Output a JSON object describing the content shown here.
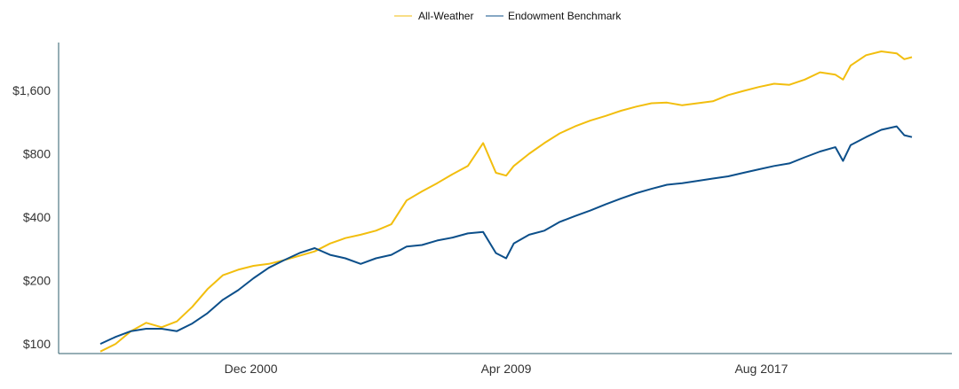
{
  "chart_data": {
    "type": "line",
    "title": "",
    "xlabel": "",
    "ylabel": "",
    "y_scale": "log",
    "ylim": [
      90,
      2700
    ],
    "y_ticks": [
      {
        "value": 100,
        "label": "$100"
      },
      {
        "value": 200,
        "label": "$200"
      },
      {
        "value": 400,
        "label": "$400"
      },
      {
        "value": 800,
        "label": "$800"
      },
      {
        "value": 1600,
        "label": "$1,600"
      }
    ],
    "x_range": [
      "1996-01",
      "2022-07"
    ],
    "x_ticks": [
      {
        "value": "2000-12",
        "label": "Dec 2000"
      },
      {
        "value": "2009-04",
        "label": "Apr 2009"
      },
      {
        "value": "2017-08",
        "label": "Aug 2017"
      }
    ],
    "legend": {
      "position": "top-center"
    },
    "grid": false,
    "series": [
      {
        "name": "All-Weather",
        "color": "#F2BE0E",
        "points": [
          [
            "1996-01",
            92
          ],
          [
            "1996-07",
            100
          ],
          [
            "1997-01",
            115
          ],
          [
            "1997-07",
            126
          ],
          [
            "1998-01",
            120
          ],
          [
            "1998-07",
            128
          ],
          [
            "1999-01",
            150
          ],
          [
            "1999-07",
            182
          ],
          [
            "2000-01",
            212
          ],
          [
            "2000-07",
            225
          ],
          [
            "2001-01",
            235
          ],
          [
            "2001-07",
            240
          ],
          [
            "2002-01",
            250
          ],
          [
            "2002-07",
            262
          ],
          [
            "2003-01",
            275
          ],
          [
            "2003-07",
            300
          ],
          [
            "2004-01",
            318
          ],
          [
            "2004-07",
            330
          ],
          [
            "2005-01",
            345
          ],
          [
            "2005-07",
            370
          ],
          [
            "2006-01",
            480
          ],
          [
            "2006-07",
            530
          ],
          [
            "2007-01",
            580
          ],
          [
            "2007-07",
            640
          ],
          [
            "2008-01",
            700
          ],
          [
            "2008-07",
            900
          ],
          [
            "2008-12",
            650
          ],
          [
            "2009-04",
            630
          ],
          [
            "2009-07",
            700
          ],
          [
            "2010-01",
            800
          ],
          [
            "2010-07",
            900
          ],
          [
            "2011-01",
            1000
          ],
          [
            "2011-07",
            1080
          ],
          [
            "2012-01",
            1150
          ],
          [
            "2012-07",
            1210
          ],
          [
            "2013-01",
            1280
          ],
          [
            "2013-07",
            1340
          ],
          [
            "2014-01",
            1390
          ],
          [
            "2014-07",
            1400
          ],
          [
            "2015-01",
            1360
          ],
          [
            "2015-07",
            1390
          ],
          [
            "2016-01",
            1420
          ],
          [
            "2016-07",
            1520
          ],
          [
            "2017-01",
            1590
          ],
          [
            "2017-07",
            1660
          ],
          [
            "2018-01",
            1720
          ],
          [
            "2018-07",
            1700
          ],
          [
            "2019-01",
            1800
          ],
          [
            "2019-07",
            1950
          ],
          [
            "2020-01",
            1900
          ],
          [
            "2020-04",
            1800
          ],
          [
            "2020-07",
            2100
          ],
          [
            "2021-01",
            2350
          ],
          [
            "2021-07",
            2450
          ],
          [
            "2022-01",
            2400
          ],
          [
            "2022-04",
            2250
          ],
          [
            "2022-07",
            2300
          ]
        ]
      },
      {
        "name": "Endowment Benchmark",
        "color": "#0C4F8A",
        "points": [
          [
            "1996-01",
            100
          ],
          [
            "1996-07",
            108
          ],
          [
            "1997-01",
            115
          ],
          [
            "1997-07",
            118
          ],
          [
            "1998-01",
            118
          ],
          [
            "1998-07",
            115
          ],
          [
            "1999-01",
            125
          ],
          [
            "1999-07",
            140
          ],
          [
            "2000-01",
            162
          ],
          [
            "2000-07",
            180
          ],
          [
            "2001-01",
            205
          ],
          [
            "2001-07",
            230
          ],
          [
            "2002-01",
            250
          ],
          [
            "2002-07",
            270
          ],
          [
            "2003-01",
            285
          ],
          [
            "2003-07",
            265
          ],
          [
            "2004-01",
            255
          ],
          [
            "2004-07",
            240
          ],
          [
            "2005-01",
            255
          ],
          [
            "2005-07",
            265
          ],
          [
            "2006-01",
            290
          ],
          [
            "2006-07",
            295
          ],
          [
            "2007-01",
            310
          ],
          [
            "2007-07",
            320
          ],
          [
            "2008-01",
            335
          ],
          [
            "2008-07",
            340
          ],
          [
            "2008-12",
            270
          ],
          [
            "2009-04",
            255
          ],
          [
            "2009-07",
            300
          ],
          [
            "2010-01",
            330
          ],
          [
            "2010-07",
            345
          ],
          [
            "2011-01",
            380
          ],
          [
            "2011-07",
            405
          ],
          [
            "2012-01",
            430
          ],
          [
            "2012-07",
            460
          ],
          [
            "2013-01",
            490
          ],
          [
            "2013-07",
            520
          ],
          [
            "2014-01",
            545
          ],
          [
            "2014-07",
            570
          ],
          [
            "2015-01",
            580
          ],
          [
            "2015-07",
            595
          ],
          [
            "2016-01",
            610
          ],
          [
            "2016-07",
            625
          ],
          [
            "2017-01",
            650
          ],
          [
            "2017-07",
            675
          ],
          [
            "2018-01",
            700
          ],
          [
            "2018-07",
            720
          ],
          [
            "2019-01",
            770
          ],
          [
            "2019-07",
            820
          ],
          [
            "2020-01",
            860
          ],
          [
            "2020-04",
            740
          ],
          [
            "2020-07",
            880
          ],
          [
            "2021-01",
            960
          ],
          [
            "2021-07",
            1040
          ],
          [
            "2022-01",
            1080
          ],
          [
            "2022-04",
            980
          ],
          [
            "2022-07",
            960
          ]
        ]
      }
    ]
  }
}
